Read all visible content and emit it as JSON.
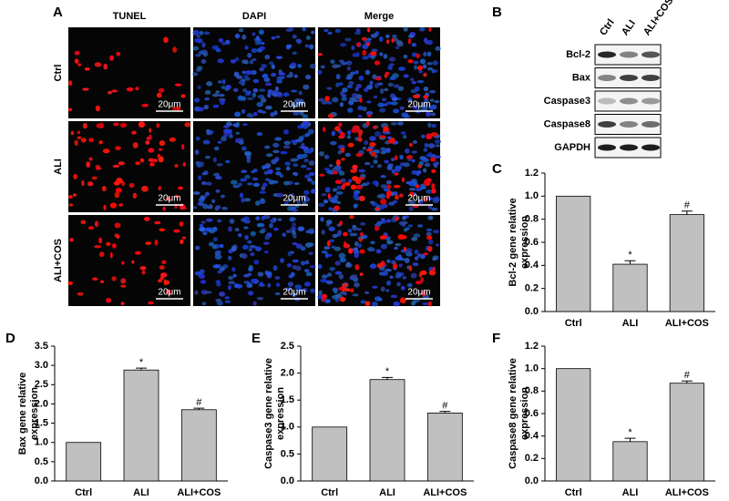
{
  "panel_a": {
    "letter": "A",
    "columns": [
      "TUNEL",
      "DAPI",
      "Merge"
    ],
    "rows": [
      "Ctrl",
      "ALI",
      "ALI+COS"
    ],
    "scale_bar": "20μm"
  },
  "panel_b": {
    "letter": "B",
    "lanes": [
      "Ctrl",
      "ALI",
      "ALI+COS"
    ],
    "proteins": [
      "Bcl-2",
      "Bax",
      "Caspase3",
      "Caspase8",
      "GAPDH"
    ]
  },
  "chart_data": [
    {
      "panel": "C",
      "type": "bar",
      "y_label": [
        "Bcl-2 gene relative",
        "expression"
      ],
      "categories": [
        "Ctrl",
        "ALI",
        "ALI+COS"
      ],
      "values": [
        1.0,
        0.41,
        0.84
      ],
      "errors": [
        0,
        0.03,
        0.03
      ],
      "bar_labels": [
        null,
        "*",
        "#"
      ],
      "color": "#c0c0c0",
      "ylim": [
        0,
        1.2
      ],
      "yticks": [
        {
          "value": 0,
          "label": "0.0"
        },
        {
          "value": 0.2,
          "label": "0.2"
        },
        {
          "value": 0.4,
          "label": "0.4"
        },
        {
          "value": 0.6,
          "label": "0.6"
        },
        {
          "value": 0.8,
          "label": "0.8"
        },
        {
          "value": 1.0,
          "label": "1.0"
        },
        {
          "value": 1.2,
          "label": "1.2"
        }
      ]
    },
    {
      "panel": "D",
      "type": "bar",
      "y_label": [
        "Bax gene relative",
        "expression"
      ],
      "categories": [
        "Ctrl",
        "ALI",
        "ALI+COS"
      ],
      "values": [
        1.0,
        2.88,
        1.85
      ],
      "errors": [
        0,
        0.05,
        0.04
      ],
      "bar_labels": [
        null,
        "*",
        "#"
      ],
      "color": "#c0c0c0",
      "ylim": [
        0,
        3.5
      ],
      "yticks": [
        {
          "value": 0,
          "label": "0.0"
        },
        {
          "value": 0.5,
          "label": "0.5"
        },
        {
          "value": 1.0,
          "label": "1.0"
        },
        {
          "value": 1.5,
          "label": "1.5"
        },
        {
          "value": 2.0,
          "label": "2.0"
        },
        {
          "value": 2.5,
          "label": "2.5"
        },
        {
          "value": 3.0,
          "label": "3.0"
        },
        {
          "value": 3.5,
          "label": "3.5"
        }
      ]
    },
    {
      "panel": "E",
      "type": "bar",
      "y_label": [
        "Caspase3 gene relative",
        "expression"
      ],
      "categories": [
        "Ctrl",
        "ALI",
        "ALI+COS"
      ],
      "values": [
        1.0,
        1.88,
        1.26
      ],
      "errors": [
        0,
        0.04,
        0.03
      ],
      "bar_labels": [
        null,
        "*",
        "#"
      ],
      "color": "#c0c0c0",
      "ylim": [
        0,
        2.5
      ],
      "yticks": [
        {
          "value": 0,
          "label": "0.0"
        },
        {
          "value": 0.5,
          "label": "0.5"
        },
        {
          "value": 1.0,
          "label": "1.0"
        },
        {
          "value": 1.5,
          "label": "1.5"
        },
        {
          "value": 2.0,
          "label": "2.0"
        },
        {
          "value": 2.5,
          "label": "2.5"
        }
      ]
    },
    {
      "panel": "F",
      "type": "bar",
      "y_label": [
        "Caspase8 gene relative",
        "expression"
      ],
      "categories": [
        "Ctrl",
        "ALI",
        "ALI+COS"
      ],
      "values": [
        1.0,
        0.35,
        0.87
      ],
      "errors": [
        0,
        0.03,
        0.02
      ],
      "bar_labels": [
        null,
        "*",
        "#"
      ],
      "color": "#c0c0c0",
      "ylim": [
        0,
        1.2
      ],
      "yticks": [
        {
          "value": 0,
          "label": "0.0"
        },
        {
          "value": 0.2,
          "label": "0.2"
        },
        {
          "value": 0.4,
          "label": "0.4"
        },
        {
          "value": 0.6,
          "label": "0.6"
        },
        {
          "value": 0.8,
          "label": "0.8"
        },
        {
          "value": 1.0,
          "label": "1.0"
        },
        {
          "value": 1.2,
          "label": "1.2"
        }
      ]
    }
  ]
}
